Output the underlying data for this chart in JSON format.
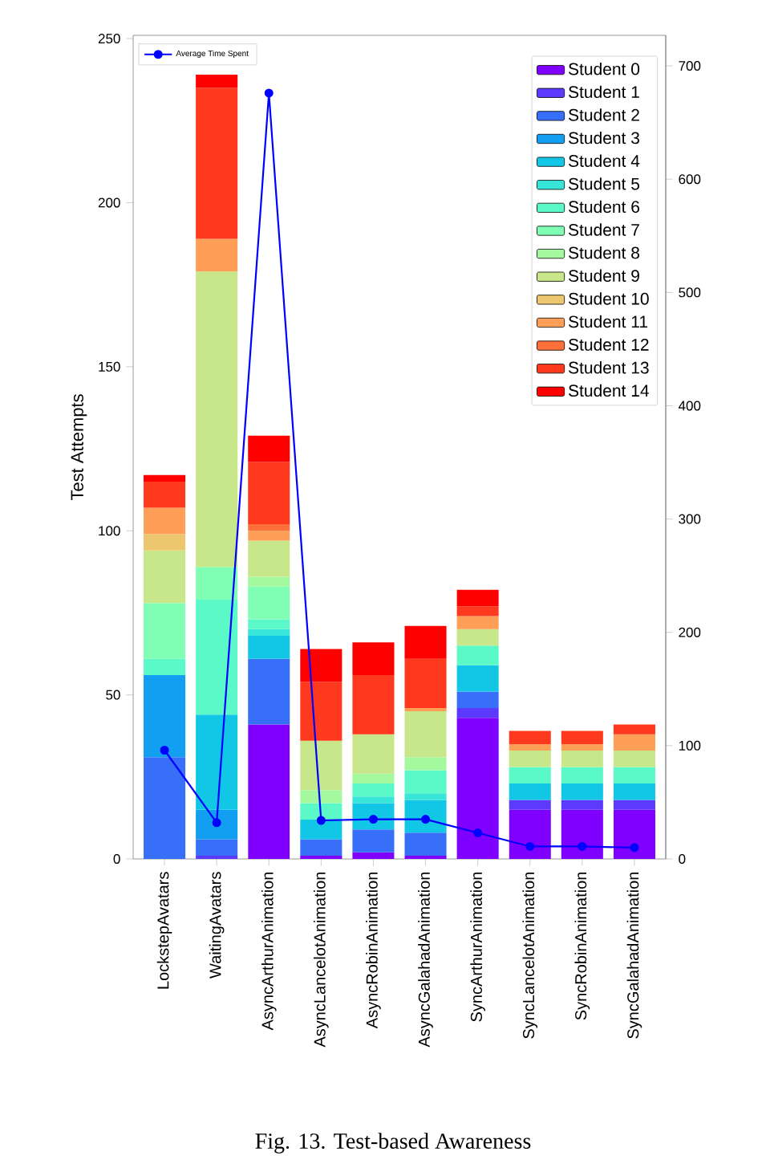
{
  "chart_data": {
    "type": "bar",
    "stacked": true,
    "ylabel": "Test Attempts",
    "categories": [
      "LockstepAvatars",
      "WaitingAvatars",
      "AsyncArthurAnimation",
      "AsyncLancelotAnimation",
      "AsyncRobinAnimation",
      "AsyncGalahadAnimation",
      "SyncArthurAnimation",
      "SyncLancelotAnimation",
      "SyncRobinAnimation",
      "SyncGalahadAnimation"
    ],
    "ylim": [
      0,
      251
    ],
    "yticks": [
      0,
      50,
      100,
      150,
      200,
      250
    ],
    "y2lim": [
      0,
      727
    ],
    "y2ticks": [
      0,
      100,
      200,
      300,
      400,
      500,
      600,
      700
    ],
    "legend": "top right",
    "marker": "circle",
    "grid": false,
    "annotations": [
      "Fig. 13. Test-based Awareness"
    ],
    "series": [
      {
        "name": "Student 0",
        "color": "#8000ff",
        "values": [
          null,
          null,
          41,
          1,
          2,
          1,
          43,
          15,
          15,
          15
        ]
      },
      {
        "name": "Student 1",
        "color": "#5b39fd",
        "values": [
          null,
          1,
          null,
          null,
          null,
          null,
          3,
          3,
          3,
          3
        ]
      },
      {
        "name": "Student 2",
        "color": "#376ff9",
        "values": [
          31,
          5,
          20,
          5,
          7,
          7,
          5,
          null,
          null,
          null
        ]
      },
      {
        "name": "Student 3",
        "color": "#129ff1",
        "values": [
          25,
          9,
          null,
          null,
          null,
          null,
          null,
          null,
          null,
          null
        ]
      },
      {
        "name": "Student 4",
        "color": "#12c7e6",
        "values": [
          null,
          29,
          7,
          6,
          8,
          10,
          8,
          5,
          5,
          5
        ]
      },
      {
        "name": "Student 5",
        "color": "#37e6d8",
        "values": [
          null,
          null,
          2,
          null,
          2,
          2,
          null,
          null,
          null,
          null
        ]
      },
      {
        "name": "Student 6",
        "color": "#5bf9c7",
        "values": [
          5,
          35,
          3,
          5,
          4,
          7,
          6,
          5,
          5,
          5
        ]
      },
      {
        "name": "Student 7",
        "color": "#80ffb4",
        "values": [
          17,
          10,
          10,
          null,
          null,
          null,
          null,
          null,
          null,
          null
        ]
      },
      {
        "name": "Student 8",
        "color": "#a4f99f",
        "values": [
          null,
          null,
          3,
          4,
          3,
          4,
          null,
          null,
          null,
          null
        ]
      },
      {
        "name": "Student 9",
        "color": "#c8e68a",
        "values": [
          16,
          90,
          11,
          15,
          12,
          14,
          5,
          5,
          5,
          5
        ]
      },
      {
        "name": "Student 10",
        "color": "#edc76f",
        "values": [
          5,
          null,
          null,
          null,
          null,
          null,
          null,
          null,
          null,
          null
        ]
      },
      {
        "name": "Student 11",
        "color": "#ff9f57",
        "values": [
          8,
          10,
          3,
          null,
          null,
          1,
          4,
          2,
          2,
          5
        ]
      },
      {
        "name": "Student 12",
        "color": "#ff6f39",
        "values": [
          null,
          null,
          2,
          null,
          null,
          null,
          null,
          null,
          null,
          null
        ]
      },
      {
        "name": "Student 13",
        "color": "#ff391d",
        "values": [
          8,
          46,
          19,
          18,
          18,
          15,
          3,
          4,
          4,
          3
        ]
      },
      {
        "name": "Student 14",
        "color": "#ff0000",
        "values": [
          2,
          4,
          8,
          10,
          10,
          10,
          5,
          null,
          null,
          null
        ]
      },
      {
        "name": "Average Time Spent",
        "type": "line",
        "axis": "y2",
        "color": "#0000ff",
        "values": [
          96,
          32,
          676,
          34,
          35,
          35,
          23,
          11,
          11,
          10
        ]
      }
    ]
  }
}
